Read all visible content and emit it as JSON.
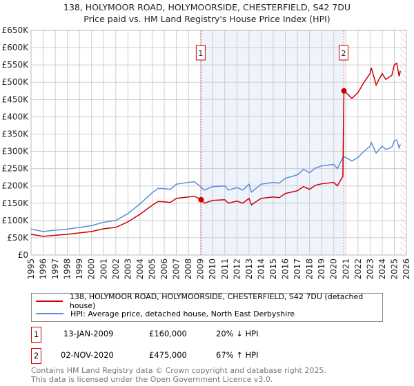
{
  "header": {
    "title": "138, HOLYMOOR ROAD, HOLYMOORSIDE, CHESTERFIELD, S42 7DU",
    "subtitle": "Price paid vs. HM Land Registry's House Price Index (HPI)"
  },
  "chart_data": {
    "type": "line",
    "title": "138, HOLYMOOR ROAD, HOLYMOORSIDE, CHESTERFIELD, S42 7DU",
    "subtitle": "Price paid vs. HM Land Registry's House Price Index (HPI)",
    "xlim": [
      1995,
      2026
    ],
    "ylim": [
      0,
      650000
    ],
    "x_ticks": [
      "1995",
      "1996",
      "1997",
      "1998",
      "1999",
      "2000",
      "2001",
      "2002",
      "2003",
      "2004",
      "2005",
      "2006",
      "2007",
      "2008",
      "2009",
      "2010",
      "2011",
      "2012",
      "2013",
      "2014",
      "2015",
      "2016",
      "2017",
      "2018",
      "2019",
      "2020",
      "2021",
      "2022",
      "2023",
      "2024",
      "2025",
      "2026"
    ],
    "y_ticks": [
      {
        "v": 0,
        "label": "£0"
      },
      {
        "v": 50000,
        "label": "£50K"
      },
      {
        "v": 100000,
        "label": "£100K"
      },
      {
        "v": 150000,
        "label": "£150K"
      },
      {
        "v": 200000,
        "label": "£200K"
      },
      {
        "v": 250000,
        "label": "£250K"
      },
      {
        "v": 300000,
        "label": "£300K"
      },
      {
        "v": 350000,
        "label": "£350K"
      },
      {
        "v": 400000,
        "label": "£400K"
      },
      {
        "v": 450000,
        "label": "£450K"
      },
      {
        "v": 500000,
        "label": "£500K"
      },
      {
        "v": 550000,
        "label": "£550K"
      },
      {
        "v": 600000,
        "label": "£600K"
      },
      {
        "v": 650000,
        "label": "£650K"
      }
    ],
    "grid": true,
    "shaded_region": [
      2009.04,
      2020.84
    ],
    "forecast_hatch_from": 2025.5,
    "series": [
      {
        "name": "138, HOLYMOOR ROAD, HOLYMOORSIDE, CHESTERFIELD, S42 7DU (detached house)",
        "color": "#cc0000",
        "x": [
          1995,
          1996,
          1997,
          1998,
          1999,
          2000,
          2001,
          2002,
          2003,
          2004,
          2005,
          2005.5,
          2006,
          2006.5,
          2007,
          2008,
          2008.5,
          2009.04,
          2009.3,
          2010,
          2011,
          2011.3,
          2012,
          2012.5,
          2013,
          2013.2,
          2014,
          2015,
          2015.5,
          2016,
          2017,
          2017.5,
          2018,
          2018.5,
          2019,
          2020,
          2020.3,
          2020.75,
          2020.84,
          2021,
          2021.5,
          2022,
          2022.5,
          2023,
          2023.1,
          2023.5,
          2024,
          2024.3,
          2024.8,
          2025,
          2025.2,
          2025.4,
          2025.5
        ],
        "y": [
          60000,
          54000,
          57000,
          60000,
          64000,
          68000,
          76000,
          80000,
          96000,
          118000,
          144000,
          155000,
          154000,
          152000,
          164000,
          168000,
          170000,
          160000,
          150000,
          158000,
          160000,
          150000,
          156000,
          150000,
          164000,
          145000,
          164000,
          168000,
          166000,
          178000,
          186000,
          198000,
          190000,
          202000,
          206000,
          210000,
          200000,
          228000,
          475000,
          470000,
          453000,
          470000,
          500000,
          525000,
          542000,
          492000,
          525000,
          508000,
          520000,
          550000,
          555000,
          517000,
          533000
        ]
      },
      {
        "name": "HPI: Average price, detached house, North East Derbyshire",
        "color": "#5b8ed6",
        "x": [
          1995,
          1996,
          1997,
          1998,
          1999,
          2000,
          2001,
          2002,
          2003,
          2004,
          2005,
          2005.5,
          2006,
          2006.5,
          2007,
          2008,
          2008.5,
          2009,
          2009.3,
          2010,
          2011,
          2011.3,
          2012,
          2012.5,
          2013,
          2013.2,
          2014,
          2015,
          2015.5,
          2016,
          2017,
          2017.5,
          2018,
          2018.5,
          2019,
          2020,
          2020.3,
          2020.8,
          2021,
          2021.5,
          2022,
          2022.5,
          2023,
          2023.1,
          2023.5,
          2024,
          2024.3,
          2024.8,
          2025,
          2025.2,
          2025.4,
          2025.5
        ],
        "y": [
          75000,
          68000,
          72000,
          75000,
          80000,
          85000,
          95000,
          100000,
          120000,
          148000,
          180000,
          193000,
          192000,
          190000,
          205000,
          210000,
          212000,
          198000,
          188000,
          198000,
          200000,
          188000,
          195000,
          188000,
          205000,
          182000,
          205000,
          210000,
          208000,
          222000,
          232000,
          248000,
          238000,
          252000,
          258000,
          262000,
          250000,
          285000,
          282000,
          272000,
          282000,
          300000,
          315000,
          325000,
          295000,
          315000,
          305000,
          312000,
          330000,
          333000,
          310000,
          320000
        ]
      }
    ],
    "annotations": [
      {
        "label": "1",
        "x": 2009.04,
        "y": 160000
      },
      {
        "label": "2",
        "x": 2020.84,
        "y": 475000
      }
    ]
  },
  "legend": {
    "items": [
      {
        "label": "138, HOLYMOOR ROAD, HOLYMOORSIDE, CHESTERFIELD, S42 7DU (detached house)",
        "color": "#cc0000"
      },
      {
        "label": "HPI: Average price, detached house, North East Derbyshire",
        "color": "#5b8ed6"
      }
    ]
  },
  "transactions": [
    {
      "num": "1",
      "date": "13-JAN-2009",
      "price": "£160,000",
      "hpi": "20% ↓ HPI"
    },
    {
      "num": "2",
      "date": "02-NOV-2020",
      "price": "£475,000",
      "hpi": "67% ↑ HPI"
    }
  ],
  "footer": {
    "line1": "Contains HM Land Registry data © Crown copyright and database right 2025.",
    "line2": "This data is licensed under the Open Government Licence v3.0."
  }
}
